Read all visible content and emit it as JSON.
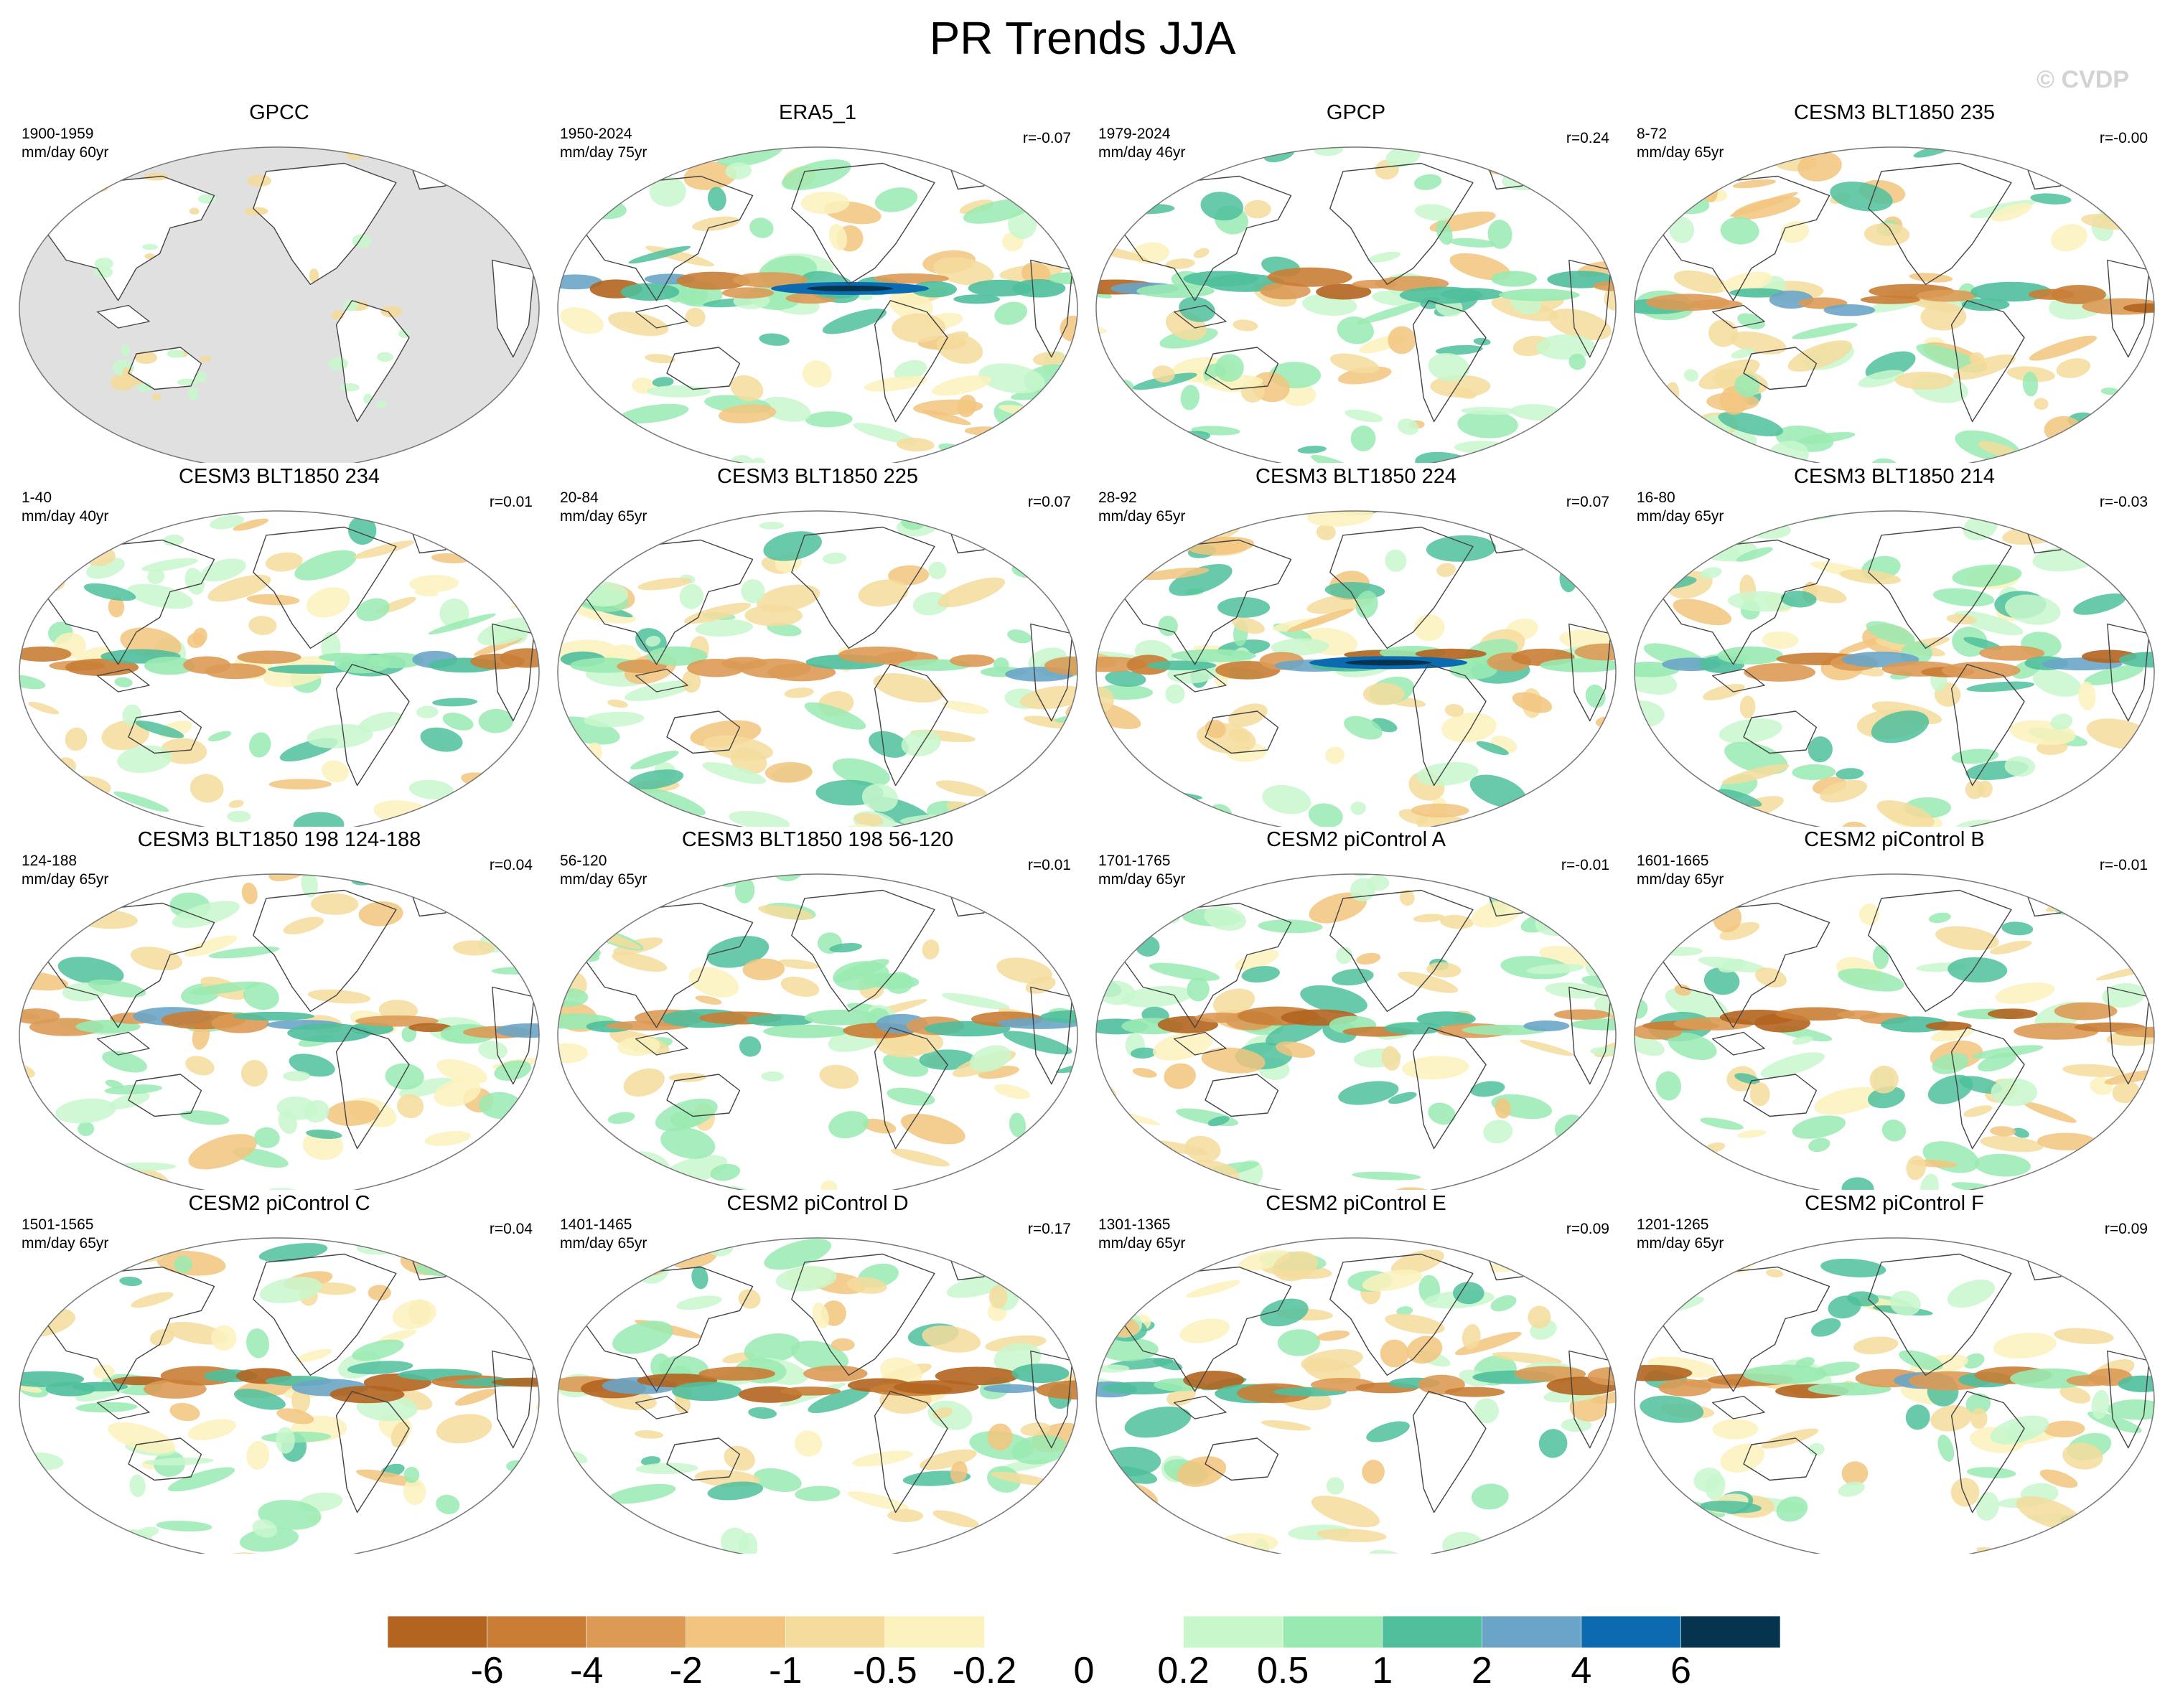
{
  "title": "PR Trends JJA",
  "copyright": "© CVDP",
  "panels": [
    {
      "title": "GPCC",
      "period": "1900-1959",
      "units": "mm/day 60yr",
      "corr": "",
      "masked": true
    },
    {
      "title": "ERA5_1",
      "period": "1950-2024",
      "units": "mm/day 75yr",
      "corr": "r=-0.07",
      "masked": false
    },
    {
      "title": "GPCP",
      "period": "1979-2024",
      "units": "mm/day 46yr",
      "corr": "r=0.24",
      "masked": false
    },
    {
      "title": "CESM3 BLT1850 235",
      "period": "8-72",
      "units": "mm/day 65yr",
      "corr": "r=-0.00",
      "masked": false
    },
    {
      "title": "CESM3 BLT1850 234",
      "period": "1-40",
      "units": "mm/day 40yr",
      "corr": "r=0.01",
      "masked": false
    },
    {
      "title": "CESM3 BLT1850 225",
      "period": "20-84",
      "units": "mm/day 65yr",
      "corr": "r=0.07",
      "masked": false
    },
    {
      "title": "CESM3 BLT1850 224",
      "period": "28-92",
      "units": "mm/day 65yr",
      "corr": "r=0.07",
      "masked": false
    },
    {
      "title": "CESM3 BLT1850 214",
      "period": "16-80",
      "units": "mm/day 65yr",
      "corr": "r=-0.03",
      "masked": false
    },
    {
      "title": "CESM3 BLT1850 198 124-188",
      "period": "124-188",
      "units": "mm/day 65yr",
      "corr": "r=0.04",
      "masked": false
    },
    {
      "title": "CESM3 BLT1850 198 56-120",
      "period": "56-120",
      "units": "mm/day 65yr",
      "corr": "r=0.01",
      "masked": false
    },
    {
      "title": "CESM2 piControl A",
      "period": "1701-1765",
      "units": "mm/day 65yr",
      "corr": "r=-0.01",
      "masked": false
    },
    {
      "title": "CESM2 piControl B",
      "period": "1601-1665",
      "units": "mm/day 65yr",
      "corr": "r=-0.01",
      "masked": false
    },
    {
      "title": "CESM2 piControl C",
      "period": "1501-1565",
      "units": "mm/day 65yr",
      "corr": "r=0.04",
      "masked": false
    },
    {
      "title": "CESM2 piControl D",
      "period": "1401-1465",
      "units": "mm/day 65yr",
      "corr": "r=0.17",
      "masked": false
    },
    {
      "title": "CESM2 piControl E",
      "period": "1301-1365",
      "units": "mm/day 65yr",
      "corr": "r=0.09",
      "masked": false
    },
    {
      "title": "CESM2 piControl F",
      "period": "1201-1265",
      "units": "mm/day 65yr",
      "corr": "r=0.09",
      "masked": false
    }
  ],
  "colorbar": {
    "labels": [
      "-6",
      "-4",
      "-2",
      "-1",
      "-0.5",
      "-0.2",
      "0",
      "0.2",
      "0.5",
      "1",
      "2",
      "4",
      "6"
    ],
    "colors": [
      "#b3641f",
      "#c97d35",
      "#dc9a55",
      "#f2c47e",
      "#f4dc9c",
      "#fbf2bd",
      "#ffffff",
      "#ffffff",
      "#c8f7cc",
      "#99eab2",
      "#4fbf9c",
      "#6aa5c8",
      "#0b6ab0",
      "#06344f"
    ]
  },
  "colors": {
    "land_mask": "#e0e0e0",
    "coast": "#444444",
    "border": "#777777"
  }
}
